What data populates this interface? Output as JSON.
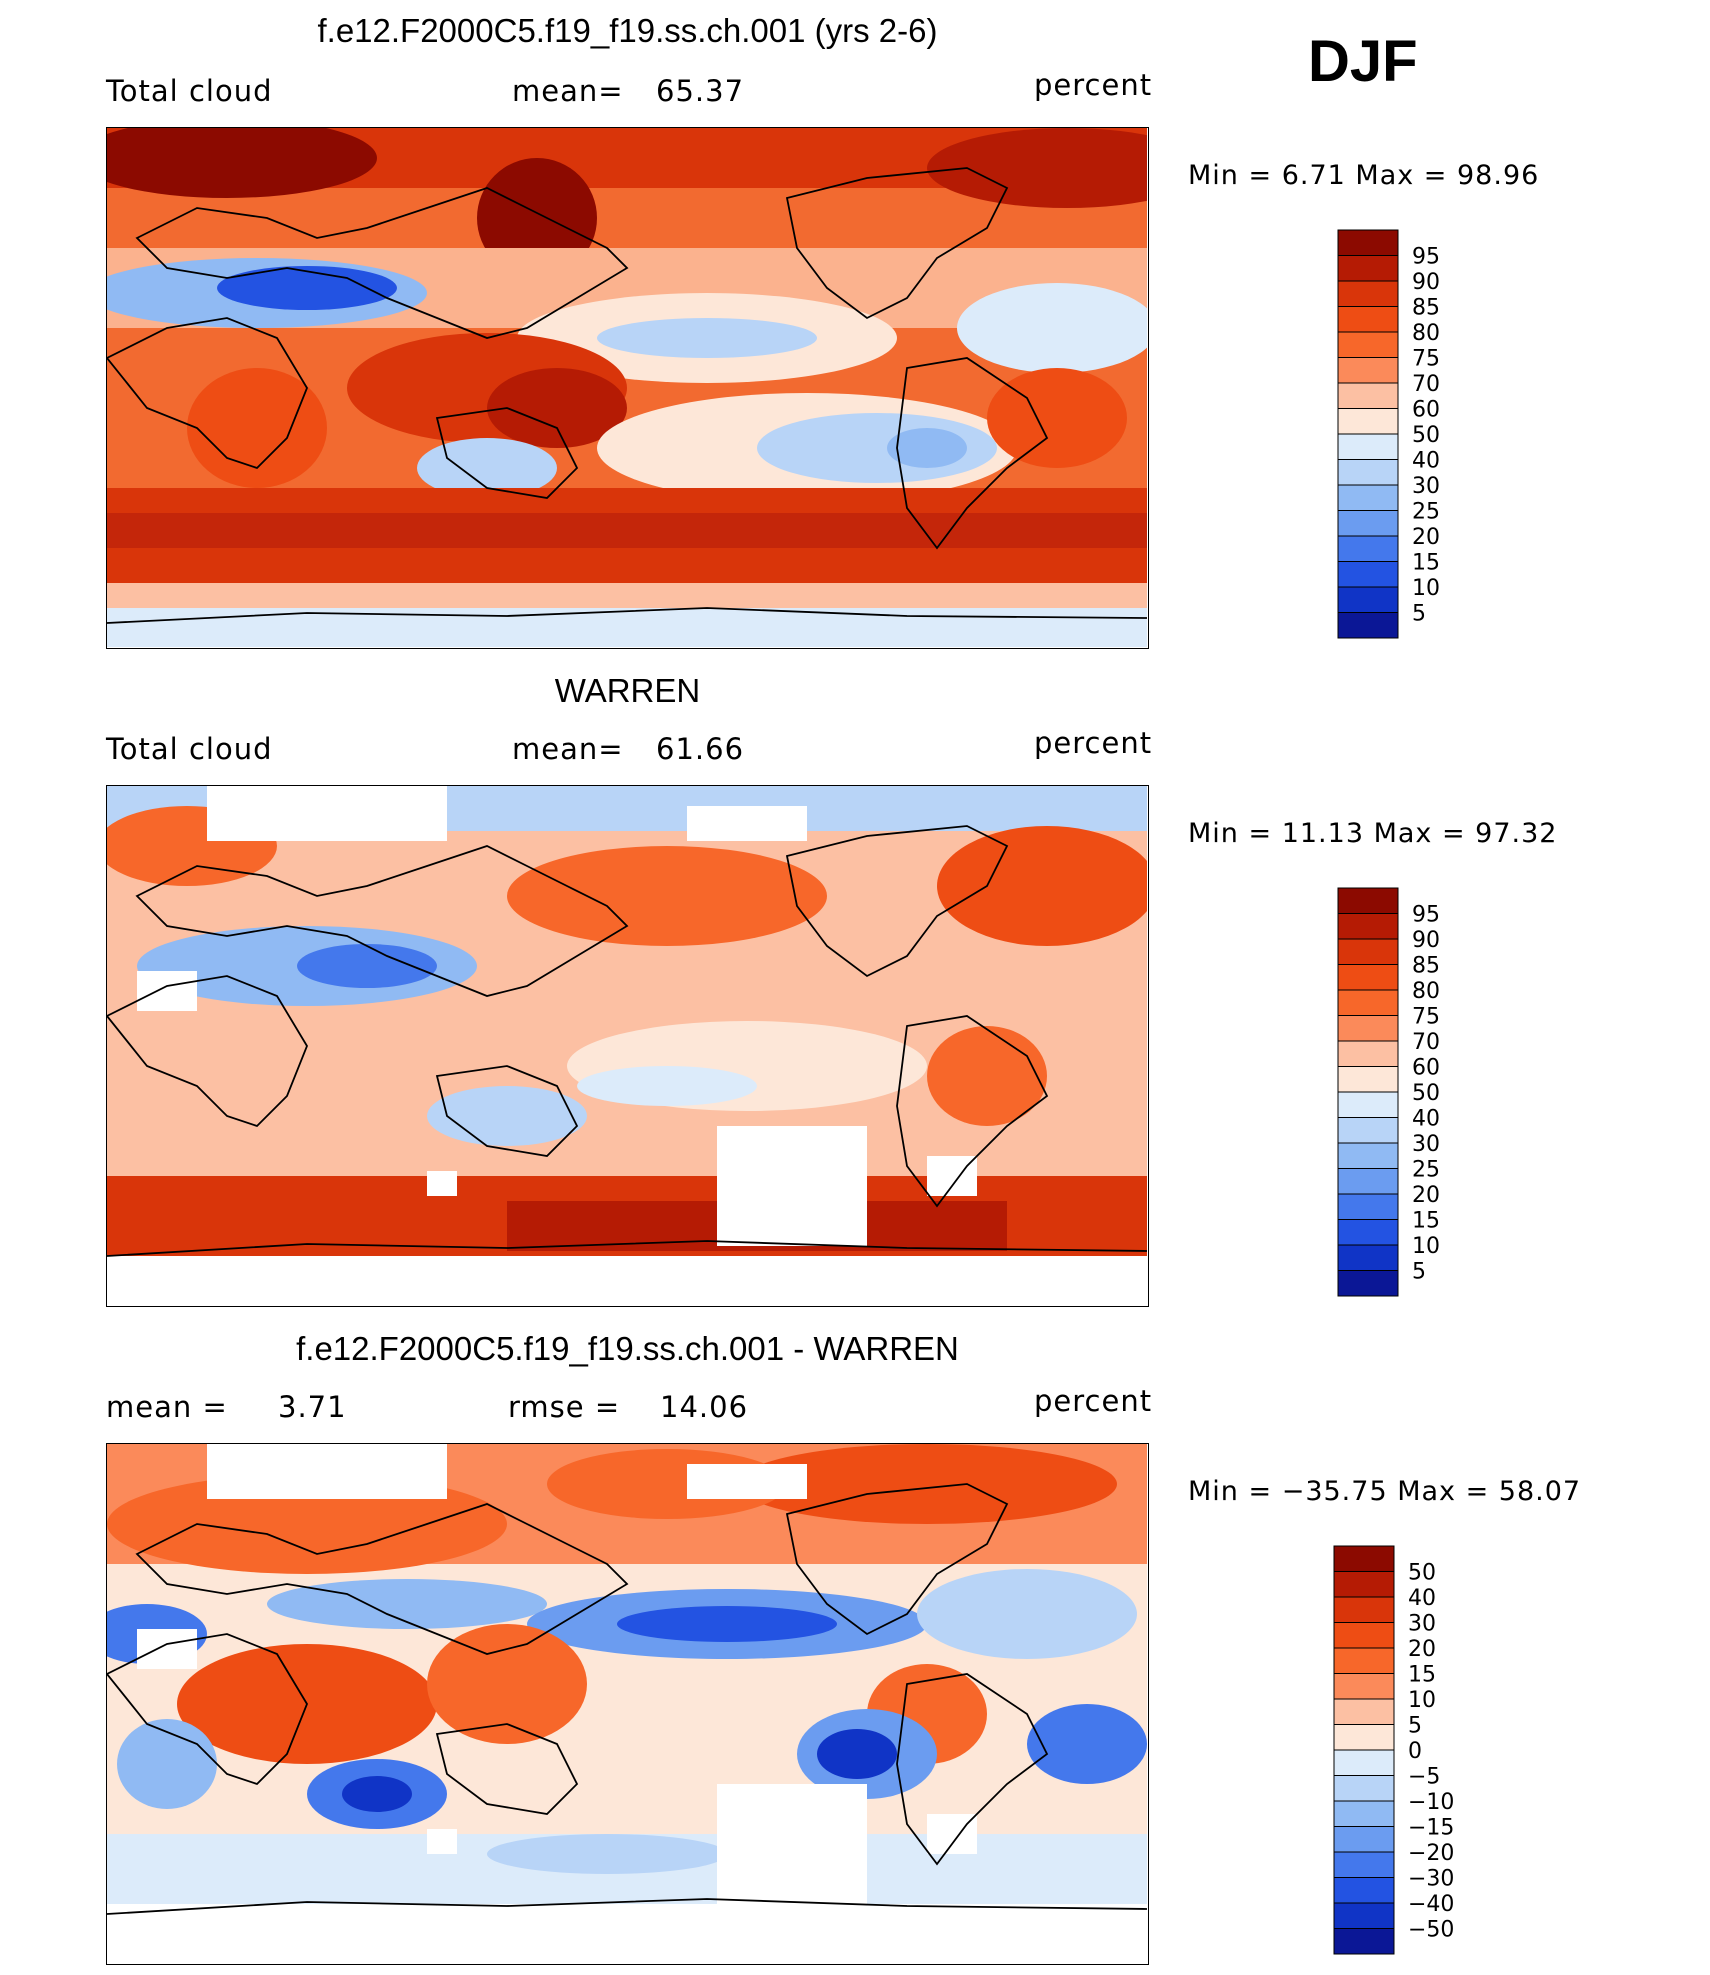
{
  "season": "DJF",
  "panels": [
    {
      "title": "f.e12.F2000C5.f19_f19.ss.ch.001 (yrs 2-6)",
      "left_label": "Total cloud",
      "stat1_label": "mean=",
      "stat1_value": "65.37",
      "stat2_label": "",
      "stat2_value": "",
      "units": "percent",
      "minmax": "Min =    6.71  Max =   98.96"
    },
    {
      "title": "WARREN",
      "left_label": "Total cloud",
      "stat1_label": "mean=",
      "stat1_value": "61.66",
      "stat2_label": "",
      "stat2_value": "",
      "units": "percent",
      "minmax": "Min =   11.13  Max =   97.32"
    },
    {
      "title": "f.e12.F2000C5.f19_f19.ss.ch.001 - WARREN",
      "left_label": "mean =",
      "stat1_label": "",
      "stat1_value": "3.71",
      "stat2_label": "rmse =",
      "stat2_value": "14.06",
      "units": "percent",
      "minmax": "Min = −35.75  Max =   58.07"
    }
  ],
  "chart_data": [
    {
      "type": "heatmap",
      "title": "f.e12.F2000C5.f19_f19.ss.ch.001 (yrs 2-6)",
      "variable": "Total cloud",
      "units": "percent",
      "mean": 65.37,
      "min": 6.71,
      "max": 98.96,
      "colorbar_levels": [
        "95",
        "90",
        "85",
        "80",
        "75",
        "70",
        "60",
        "50",
        "40",
        "30",
        "25",
        "20",
        "15",
        "10",
        "5"
      ],
      "colorbar_colors": [
        "#8c0a00",
        "#b51b04",
        "#d9350a",
        "#ee4d14",
        "#f7672a",
        "#fb8a5a",
        "#fcc0a3",
        "#fde7d8",
        "#dcebfa",
        "#b8d4f7",
        "#90baf3",
        "#6b9cf0",
        "#4478ec",
        "#2353e2",
        "#1034c6",
        "#0b1796"
      ]
    },
    {
      "type": "heatmap",
      "title": "WARREN",
      "variable": "Total cloud",
      "units": "percent",
      "mean": 61.66,
      "min": 11.13,
      "max": 97.32,
      "colorbar_levels": [
        "95",
        "90",
        "85",
        "80",
        "75",
        "70",
        "60",
        "50",
        "40",
        "30",
        "25",
        "20",
        "15",
        "10",
        "5"
      ],
      "colorbar_colors": [
        "#8c0a00",
        "#b51b04",
        "#d9350a",
        "#ee4d14",
        "#f7672a",
        "#fb8a5a",
        "#fcc0a3",
        "#fde7d8",
        "#dcebfa",
        "#b8d4f7",
        "#90baf3",
        "#6b9cf0",
        "#4478ec",
        "#2353e2",
        "#1034c6",
        "#0b1796"
      ]
    },
    {
      "type": "heatmap",
      "title": "f.e12.F2000C5.f19_f19.ss.ch.001 - WARREN",
      "units": "percent",
      "mean": 3.71,
      "rmse": 14.06,
      "min": -35.75,
      "max": 58.07,
      "colorbar_levels": [
        "50",
        "40",
        "30",
        "20",
        "15",
        "10",
        "5",
        "0",
        "−5",
        "−10",
        "−15",
        "−20",
        "−30",
        "−40",
        "−50"
      ],
      "colorbar_colors": [
        "#8c0a00",
        "#b51b04",
        "#d9350a",
        "#ee4d14",
        "#f7672a",
        "#fb8a5a",
        "#fcc0a3",
        "#fde7d8",
        "#dcebfa",
        "#b8d4f7",
        "#90baf3",
        "#6b9cf0",
        "#4478ec",
        "#2353e2",
        "#1034c6",
        "#0b1796"
      ]
    }
  ]
}
